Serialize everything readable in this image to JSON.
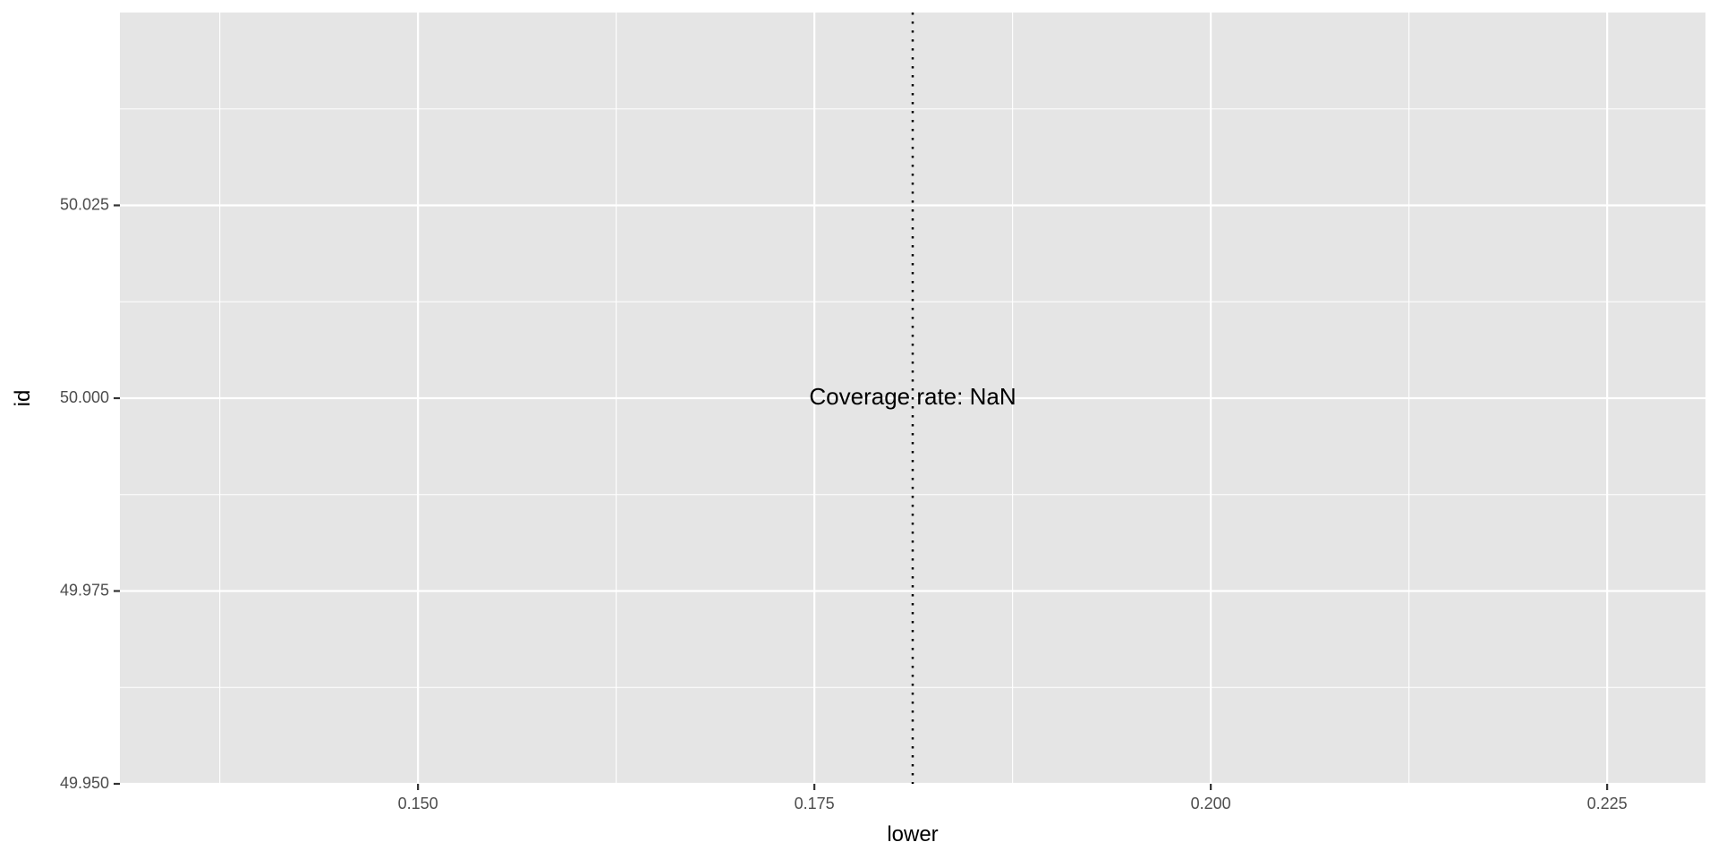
{
  "chart_data": {
    "type": "scatter",
    "title": "",
    "xlabel": "lower",
    "ylabel": "id",
    "xlim": [
      0.1312,
      0.2312
    ],
    "ylim": [
      49.95,
      50.05
    ],
    "x_ticks": [
      0.15,
      0.175,
      0.2,
      0.225
    ],
    "x_tick_labels": [
      "0.150",
      "0.175",
      "0.200",
      "0.225"
    ],
    "y_ticks": [
      49.95,
      49.975,
      50.0,
      50.025
    ],
    "y_tick_labels": [
      "49.950",
      "49.975",
      "50.000",
      "50.025"
    ],
    "vline": {
      "x": 0.1812,
      "style": "dotted",
      "color": "#000000"
    },
    "annotation": {
      "text": "Coverage rate: NaN",
      "x": 0.1812,
      "y": 50.0
    },
    "series": [],
    "grid": true,
    "legend": "none",
    "colors": {
      "panel": "#e5e5e5",
      "grid": "#ffffff",
      "text": "#4d4d4d"
    }
  }
}
